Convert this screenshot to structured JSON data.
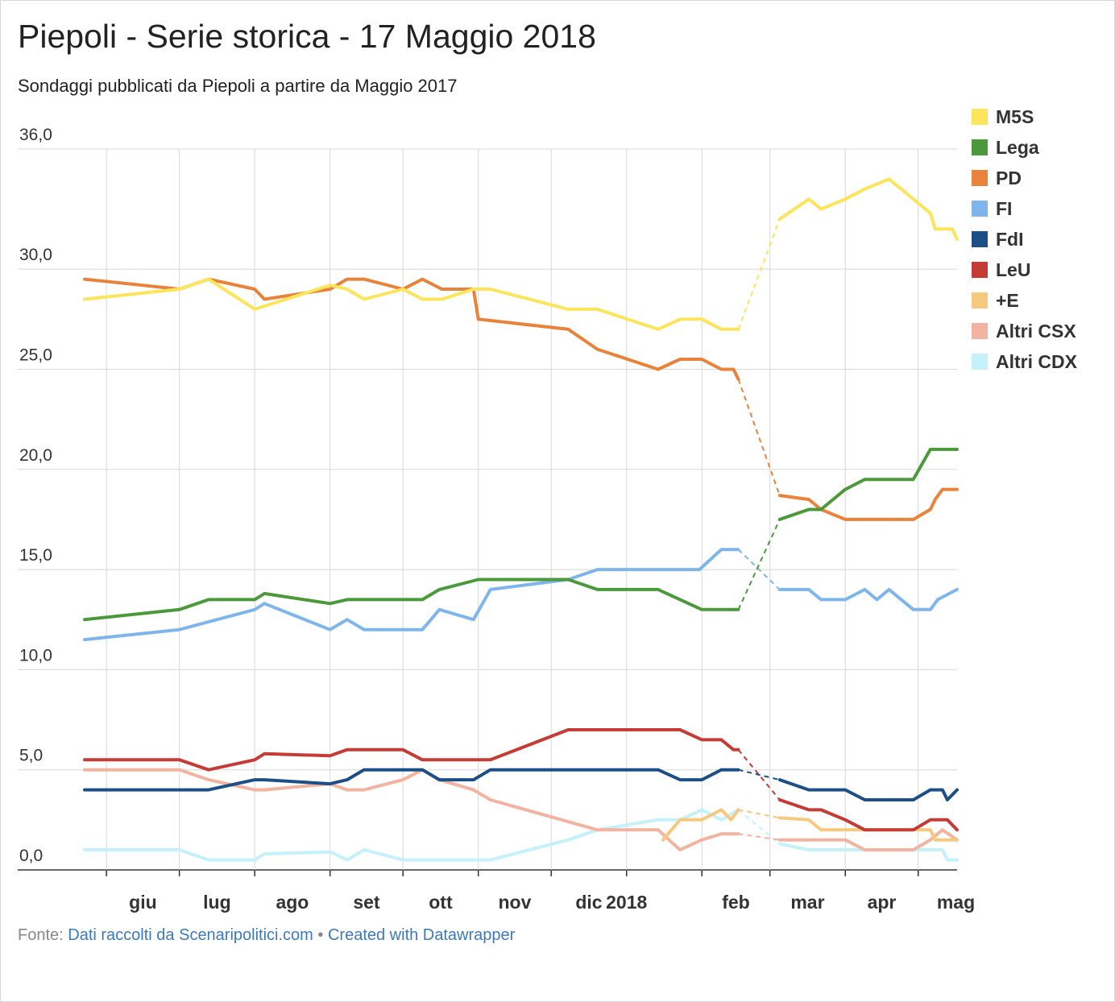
{
  "title": "Piepoli - Serie storica - 17 Maggio 2018",
  "subtitle": "Sondaggi pubblicati da Piepoli a partire da Maggio 2017",
  "footer": {
    "source_label": "Fonte:",
    "source_link": "Dati raccolti da Scenaripolitici.com",
    "separator": "•",
    "credit_link": "Created with Datawrapper"
  },
  "chart_data": {
    "type": "line",
    "title": "Piepoli - Serie storica - 17 Maggio 2018",
    "ylim": [
      0,
      36
    ],
    "y_ticks": [
      0,
      5,
      10,
      15,
      20,
      25,
      30,
      36
    ],
    "y_tick_labels": [
      "0,0",
      "5,0",
      "10,0",
      "15,0",
      "20,0",
      "25,0",
      "30,0",
      "36,0"
    ],
    "x_range": [
      "2017-05-23",
      "2018-05-17"
    ],
    "x_ticks": [
      {
        "date": "2017-06-01",
        "label": "giu"
      },
      {
        "date": "2017-07-01",
        "label": "lug"
      },
      {
        "date": "2017-08-01",
        "label": "ago"
      },
      {
        "date": "2017-09-01",
        "label": "set"
      },
      {
        "date": "2017-10-01",
        "label": "ott"
      },
      {
        "date": "2017-11-01",
        "label": "nov"
      },
      {
        "date": "2017-12-01",
        "label": "dic"
      },
      {
        "date": "2018-01-01",
        "label": "2018"
      },
      {
        "date": "2018-02-01",
        "label": "feb"
      },
      {
        "date": "2018-03-01",
        "label": "mar"
      },
      {
        "date": "2018-04-01",
        "label": "apr"
      },
      {
        "date": "2018-05-01",
        "label": "mag"
      }
    ],
    "vertical_grid": true,
    "legend_position": "right",
    "gap": {
      "from": "2018-02-16",
      "to": "2018-03-05",
      "style": "dashed"
    },
    "series": [
      {
        "name": "M5S",
        "color": "#fce55a",
        "points": [
          [
            "2017-05-23",
            28.5
          ],
          [
            "2017-07-01",
            29
          ],
          [
            "2017-07-13",
            29.5
          ],
          [
            "2017-08-01",
            28
          ],
          [
            "2017-09-01",
            29.2
          ],
          [
            "2017-09-08",
            29
          ],
          [
            "2017-09-15",
            28.5
          ],
          [
            "2017-10-01",
            29
          ],
          [
            "2017-10-09",
            28.5
          ],
          [
            "2017-10-17",
            28.5
          ],
          [
            "2017-10-30",
            29
          ],
          [
            "2017-11-06",
            29
          ],
          [
            "2017-12-08",
            28
          ],
          [
            "2017-12-20",
            28
          ],
          [
            "2018-01-14",
            27
          ],
          [
            "2018-01-23",
            27.5
          ],
          [
            "2018-02-01",
            27.5
          ],
          [
            "2018-02-09",
            27
          ],
          [
            "2018-02-16",
            27
          ],
          [
            "2018-03-05",
            32.5
          ],
          [
            "2018-03-17",
            33.5
          ],
          [
            "2018-03-22",
            33
          ],
          [
            "2018-04-01",
            33.5
          ],
          [
            "2018-04-09",
            34
          ],
          [
            "2018-04-19",
            34.5
          ],
          [
            "2018-04-29",
            33.5
          ],
          [
            "2018-05-06",
            32.8
          ],
          [
            "2018-05-08",
            32
          ],
          [
            "2018-05-15",
            32
          ],
          [
            "2018-05-17",
            31.5
          ]
        ]
      },
      {
        "name": "Lega",
        "color": "#4b993b",
        "points": [
          [
            "2017-05-23",
            12.5
          ],
          [
            "2017-07-01",
            13
          ],
          [
            "2017-07-13",
            13.5
          ],
          [
            "2017-08-01",
            13.5
          ],
          [
            "2017-08-05",
            13.8
          ],
          [
            "2017-09-01",
            13.3
          ],
          [
            "2017-09-08",
            13.5
          ],
          [
            "2017-10-09",
            13.5
          ],
          [
            "2017-10-16",
            14
          ],
          [
            "2017-11-01",
            14.5
          ],
          [
            "2017-12-08",
            14.5
          ],
          [
            "2017-12-20",
            14
          ],
          [
            "2018-01-14",
            14
          ],
          [
            "2018-01-23",
            13.5
          ],
          [
            "2018-02-01",
            13
          ],
          [
            "2018-02-16",
            13
          ],
          [
            "2018-03-05",
            17.5
          ],
          [
            "2018-03-17",
            18
          ],
          [
            "2018-03-22",
            18
          ],
          [
            "2018-04-01",
            19
          ],
          [
            "2018-04-09",
            19.5
          ],
          [
            "2018-04-29",
            19.5
          ],
          [
            "2018-05-06",
            21
          ],
          [
            "2018-05-17",
            21
          ]
        ]
      },
      {
        "name": "PD",
        "color": "#e9833b",
        "points": [
          [
            "2017-05-23",
            29.5
          ],
          [
            "2017-07-01",
            29
          ],
          [
            "2017-07-13",
            29.5
          ],
          [
            "2017-08-01",
            29
          ],
          [
            "2017-08-05",
            28.5
          ],
          [
            "2017-09-01",
            29
          ],
          [
            "2017-09-08",
            29.5
          ],
          [
            "2017-09-15",
            29.5
          ],
          [
            "2017-10-01",
            29
          ],
          [
            "2017-10-09",
            29.5
          ],
          [
            "2017-10-17",
            29
          ],
          [
            "2017-10-30",
            29
          ],
          [
            "2017-11-01",
            27.5
          ],
          [
            "2017-12-08",
            27
          ],
          [
            "2017-12-20",
            26
          ],
          [
            "2018-01-14",
            25
          ],
          [
            "2018-01-23",
            25.5
          ],
          [
            "2018-02-01",
            25.5
          ],
          [
            "2018-02-09",
            25
          ],
          [
            "2018-02-14",
            25
          ],
          [
            "2018-02-16",
            24.5
          ],
          [
            "2018-03-05",
            18.7
          ],
          [
            "2018-03-17",
            18.5
          ],
          [
            "2018-03-22",
            18
          ],
          [
            "2018-04-01",
            17.5
          ],
          [
            "2018-04-29",
            17.5
          ],
          [
            "2018-05-06",
            18
          ],
          [
            "2018-05-08",
            18.5
          ],
          [
            "2018-05-11",
            19
          ],
          [
            "2018-05-17",
            19
          ]
        ]
      },
      {
        "name": "FI",
        "color": "#7eb6ec",
        "points": [
          [
            "2017-05-23",
            11.5
          ],
          [
            "2017-07-01",
            12
          ],
          [
            "2017-08-01",
            13
          ],
          [
            "2017-08-05",
            13.3
          ],
          [
            "2017-09-01",
            12
          ],
          [
            "2017-09-08",
            12.5
          ],
          [
            "2017-09-15",
            12
          ],
          [
            "2017-10-09",
            12
          ],
          [
            "2017-10-16",
            13
          ],
          [
            "2017-10-30",
            12.5
          ],
          [
            "2017-11-06",
            14
          ],
          [
            "2017-12-08",
            14.5
          ],
          [
            "2017-12-20",
            15
          ],
          [
            "2018-01-14",
            15
          ],
          [
            "2018-01-31",
            15
          ],
          [
            "2018-02-09",
            16
          ],
          [
            "2018-02-16",
            16
          ],
          [
            "2018-03-05",
            14
          ],
          [
            "2018-03-17",
            14
          ],
          [
            "2018-03-22",
            13.5
          ],
          [
            "2018-04-01",
            13.5
          ],
          [
            "2018-04-09",
            14
          ],
          [
            "2018-04-14",
            13.5
          ],
          [
            "2018-04-19",
            14
          ],
          [
            "2018-04-29",
            13
          ],
          [
            "2018-05-06",
            13
          ],
          [
            "2018-05-09",
            13.5
          ],
          [
            "2018-05-17",
            14
          ]
        ]
      },
      {
        "name": "FdI",
        "color": "#1d4f87",
        "points": [
          [
            "2017-05-23",
            4
          ],
          [
            "2017-07-13",
            4
          ],
          [
            "2017-08-01",
            4.5
          ],
          [
            "2017-08-05",
            4.5
          ],
          [
            "2017-09-01",
            4.3
          ],
          [
            "2017-09-08",
            4.5
          ],
          [
            "2017-09-15",
            5
          ],
          [
            "2017-10-09",
            5
          ],
          [
            "2017-10-16",
            4.5
          ],
          [
            "2017-10-30",
            4.5
          ],
          [
            "2017-11-06",
            5
          ],
          [
            "2018-01-14",
            5
          ],
          [
            "2018-01-23",
            4.5
          ],
          [
            "2018-02-01",
            4.5
          ],
          [
            "2018-02-09",
            5
          ],
          [
            "2018-02-16",
            5
          ],
          [
            "2018-03-05",
            4.5
          ],
          [
            "2018-03-17",
            4
          ],
          [
            "2018-03-22",
            4
          ],
          [
            "2018-04-01",
            4
          ],
          [
            "2018-04-09",
            3.5
          ],
          [
            "2018-04-29",
            3.5
          ],
          [
            "2018-05-06",
            4
          ],
          [
            "2018-05-11",
            4
          ],
          [
            "2018-05-13",
            3.5
          ],
          [
            "2018-05-17",
            4
          ]
        ]
      },
      {
        "name": "LeU",
        "color": "#c53b36",
        "points": [
          [
            "2017-05-23",
            5.5
          ],
          [
            "2017-07-01",
            5.5
          ],
          [
            "2017-07-13",
            5
          ],
          [
            "2017-08-01",
            5.5
          ],
          [
            "2017-08-05",
            5.8
          ],
          [
            "2017-09-01",
            5.7
          ],
          [
            "2017-09-08",
            6
          ],
          [
            "2017-10-01",
            6
          ],
          [
            "2017-10-09",
            5.5
          ],
          [
            "2017-11-06",
            5.5
          ],
          [
            "2017-12-08",
            7
          ],
          [
            "2018-01-23",
            7
          ],
          [
            "2018-02-01",
            6.5
          ],
          [
            "2018-02-09",
            6.5
          ],
          [
            "2018-02-14",
            6
          ],
          [
            "2018-02-16",
            6
          ],
          [
            "2018-03-05",
            3.5
          ],
          [
            "2018-03-17",
            3
          ],
          [
            "2018-03-22",
            3
          ],
          [
            "2018-04-01",
            2.5
          ],
          [
            "2018-04-09",
            2
          ],
          [
            "2018-04-29",
            2
          ],
          [
            "2018-05-06",
            2.5
          ],
          [
            "2018-05-13",
            2.5
          ],
          [
            "2018-05-17",
            2
          ]
        ]
      },
      {
        "name": "+E",
        "color": "#f6c97e",
        "points": [
          [
            "2018-01-16",
            1.5
          ],
          [
            "2018-01-23",
            2.5
          ],
          [
            "2018-02-01",
            2.5
          ],
          [
            "2018-02-09",
            3
          ],
          [
            "2018-02-13",
            2.5
          ],
          [
            "2018-02-16",
            3
          ],
          [
            "2018-03-05",
            2.6
          ],
          [
            "2018-03-17",
            2.5
          ],
          [
            "2018-03-22",
            2
          ],
          [
            "2018-04-29",
            2
          ],
          [
            "2018-05-06",
            2
          ],
          [
            "2018-05-08",
            1.5
          ],
          [
            "2018-05-17",
            1.5
          ]
        ]
      },
      {
        "name": "Altri CSX",
        "color": "#f2b3a0",
        "points": [
          [
            "2017-05-23",
            5
          ],
          [
            "2017-07-01",
            5
          ],
          [
            "2017-07-13",
            4.5
          ],
          [
            "2017-08-01",
            4
          ],
          [
            "2017-08-05",
            4
          ],
          [
            "2017-09-01",
            4.3
          ],
          [
            "2017-09-08",
            4
          ],
          [
            "2017-09-15",
            4
          ],
          [
            "2017-10-01",
            4.5
          ],
          [
            "2017-10-09",
            5
          ],
          [
            "2017-10-16",
            4.5
          ],
          [
            "2017-10-30",
            4
          ],
          [
            "2017-11-06",
            3.5
          ],
          [
            "2017-12-20",
            2
          ],
          [
            "2018-01-14",
            2
          ],
          [
            "2018-01-23",
            1
          ],
          [
            "2018-02-01",
            1.5
          ],
          [
            "2018-02-09",
            1.8
          ],
          [
            "2018-02-16",
            1.8
          ],
          [
            "2018-03-05",
            1.5
          ],
          [
            "2018-03-22",
            1.5
          ],
          [
            "2018-04-01",
            1.5
          ],
          [
            "2018-04-09",
            1
          ],
          [
            "2018-04-29",
            1
          ],
          [
            "2018-05-06",
            1.5
          ],
          [
            "2018-05-11",
            2
          ],
          [
            "2018-05-17",
            1.5
          ]
        ]
      },
      {
        "name": "Altri CDX",
        "color": "#c4f1fa",
        "points": [
          [
            "2017-05-23",
            1
          ],
          [
            "2017-07-01",
            1
          ],
          [
            "2017-07-13",
            0.5
          ],
          [
            "2017-08-01",
            0.5
          ],
          [
            "2017-08-05",
            0.8
          ],
          [
            "2017-09-01",
            0.9
          ],
          [
            "2017-09-08",
            0.5
          ],
          [
            "2017-09-15",
            1
          ],
          [
            "2017-10-01",
            0.5
          ],
          [
            "2017-11-06",
            0.5
          ],
          [
            "2017-12-08",
            1.5
          ],
          [
            "2017-12-20",
            2
          ],
          [
            "2018-01-14",
            2.5
          ],
          [
            "2018-01-23",
            2.5
          ],
          [
            "2018-02-01",
            3
          ],
          [
            "2018-02-09",
            2.5
          ],
          [
            "2018-02-16",
            3
          ],
          [
            "2018-03-05",
            1.3
          ],
          [
            "2018-03-17",
            1
          ],
          [
            "2018-04-01",
            1
          ],
          [
            "2018-04-29",
            1
          ],
          [
            "2018-05-11",
            1
          ],
          [
            "2018-05-13",
            0.5
          ],
          [
            "2018-05-17",
            0.5
          ]
        ]
      }
    ]
  }
}
